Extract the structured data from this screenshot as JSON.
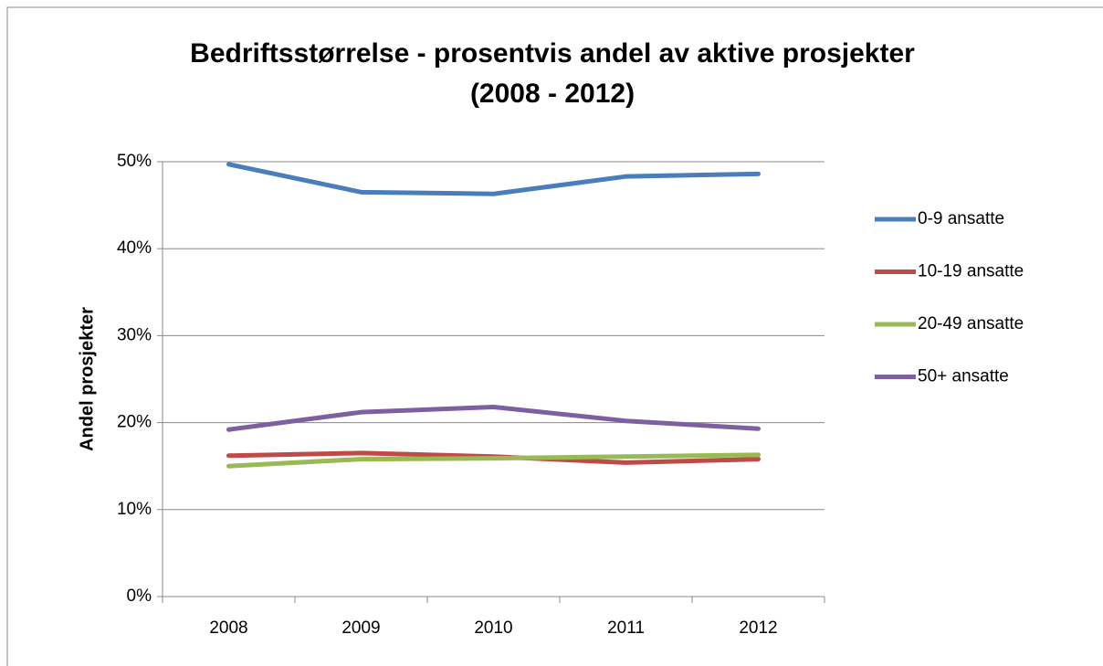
{
  "chart_data": {
    "type": "line",
    "title": [
      "Bedriftsstørrelse - prosentvis andel av aktive prosjekter",
      "(2008 - 2012)"
    ],
    "y_label": "Andel prosjekter",
    "categories": [
      "2008",
      "2009",
      "2010",
      "2011",
      "2012"
    ],
    "series": [
      {
        "name": "0-9 ansatte",
        "color": "#4a7ebb",
        "values": [
          49.7,
          46.5,
          46.3,
          48.3,
          48.6
        ]
      },
      {
        "name": "10-19 ansatte",
        "color": "#be4b48",
        "values": [
          16.2,
          16.5,
          16.1,
          15.4,
          15.8
        ]
      },
      {
        "name": "20-49 ansatte",
        "color": "#98b954",
        "values": [
          15.0,
          15.8,
          15.9,
          16.1,
          16.3
        ]
      },
      {
        "name": "50+ ansatte",
        "color": "#7d60a0",
        "values": [
          19.2,
          21.2,
          21.8,
          20.2,
          19.3
        ]
      }
    ],
    "ylim": [
      0,
      50
    ],
    "yticks": [
      {
        "value": 0,
        "label": "0%"
      },
      {
        "value": 10,
        "label": "10%"
      },
      {
        "value": 20,
        "label": "20%"
      },
      {
        "value": 30,
        "label": "30%"
      },
      {
        "value": 40,
        "label": "40%"
      },
      {
        "value": 50,
        "label": "50%"
      }
    ],
    "grid": true,
    "legend": "right"
  }
}
